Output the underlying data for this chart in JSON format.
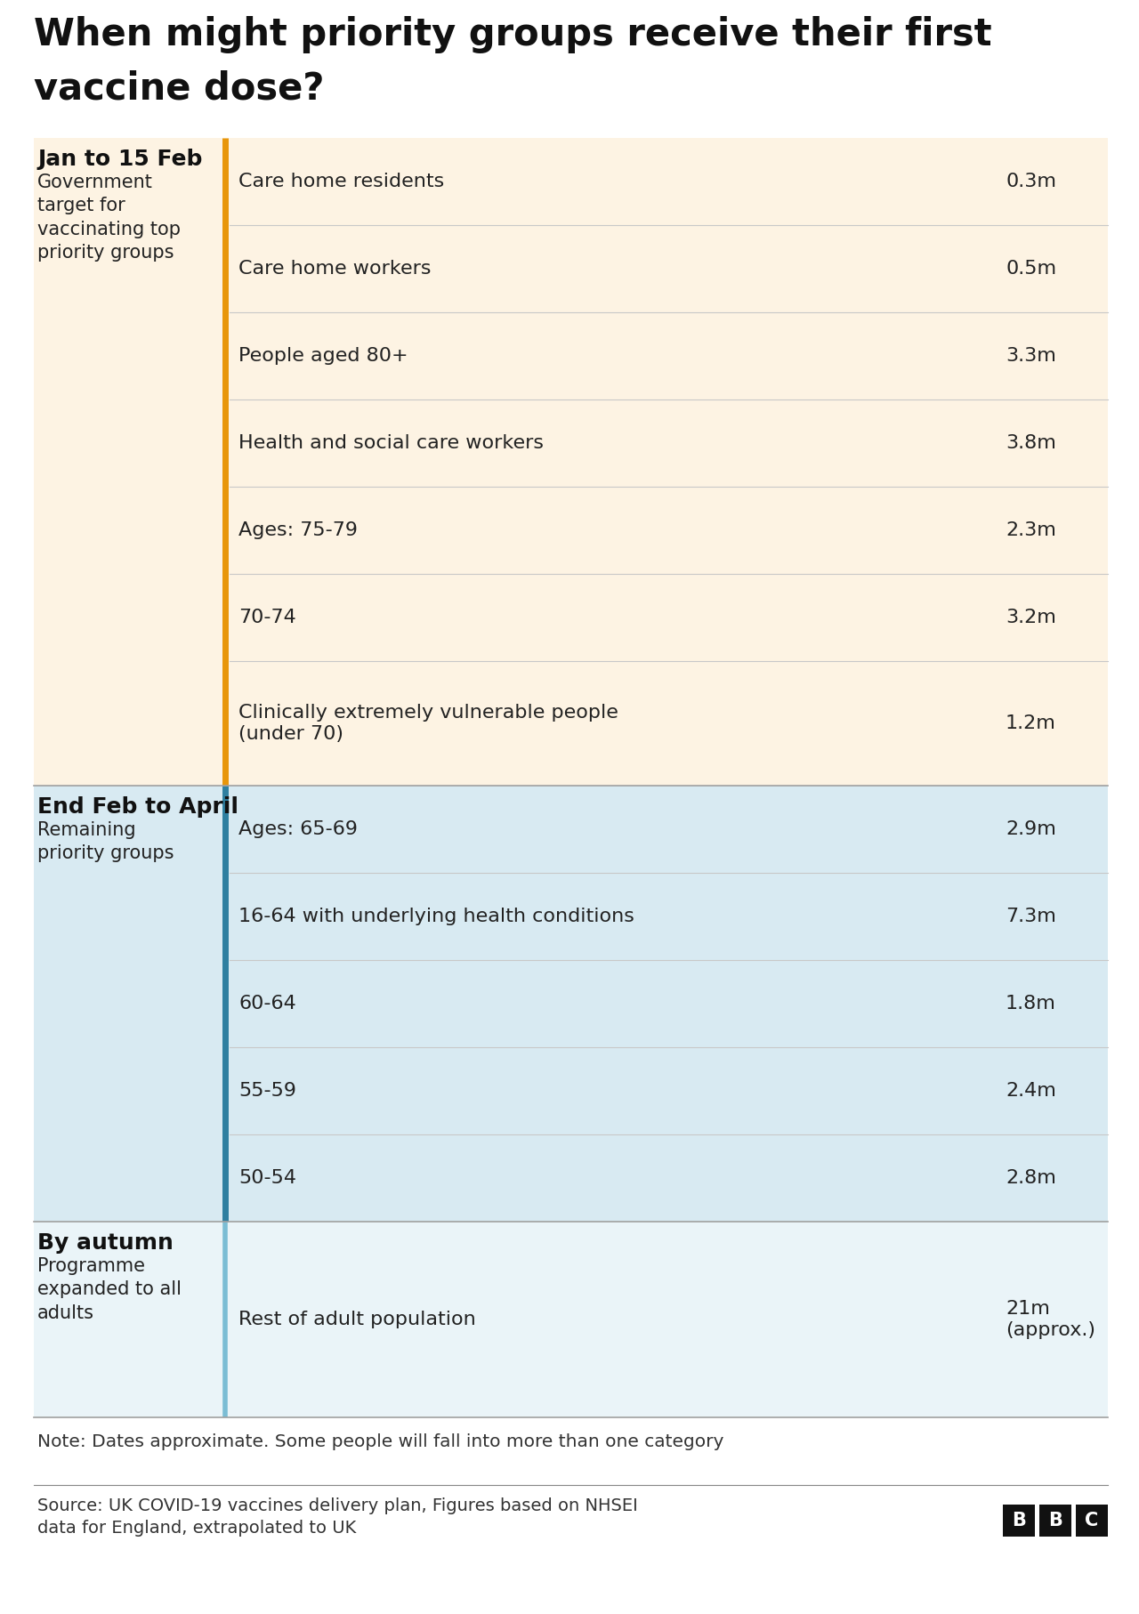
{
  "title_line1": "When might priority groups receive their first",
  "title_line2": "vaccine dose?",
  "title_fontsize": 30,
  "background_color": "#ffffff",
  "sections": [
    {
      "period": "Jan to 15 Feb",
      "subtitle": "Government\ntarget for\nvaccinating top\npriority groups",
      "bg_color": "#fdf3e3",
      "line_color": "#e8960a",
      "line_width": 5,
      "rows": [
        {
          "group": "Care home residents",
          "value": "0.3m"
        },
        {
          "group": "Care home workers",
          "value": "0.5m"
        },
        {
          "group": "People aged 80+",
          "value": "3.3m"
        },
        {
          "group": "Health and social care workers",
          "value": "3.8m"
        },
        {
          "group": "Ages: 75-79",
          "value": "2.3m"
        },
        {
          "group": "70-74",
          "value": "3.2m"
        },
        {
          "group": "Clinically extremely vulnerable people\n(under 70)",
          "value": "1.2m"
        }
      ]
    },
    {
      "period": "End Feb to April",
      "subtitle": "Remaining\npriority groups",
      "bg_color": "#d8eaf2",
      "line_color": "#2e7fa0",
      "line_width": 5,
      "rows": [
        {
          "group": "Ages: 65-69",
          "value": "2.9m"
        },
        {
          "group": "16-64 with underlying health conditions",
          "value": "7.3m"
        },
        {
          "group": "60-64",
          "value": "1.8m"
        },
        {
          "group": "55-59",
          "value": "2.4m"
        },
        {
          "group": "50-54",
          "value": "2.8m"
        }
      ]
    },
    {
      "period": "By autumn",
      "subtitle": "Programme\nexpanded to all\nadults",
      "bg_color": "#eaf4f8",
      "line_color": "#7bbdd4",
      "line_width": 4,
      "rows": [
        {
          "group": "Rest of adult population",
          "value": "21m\n(approx.)"
        }
      ]
    }
  ],
  "note": "Note: Dates approximate. Some people will fall into more than one category",
  "source": "Source: UK COVID-19 vaccines delivery plan, Figures based on NHSEI\ndata for England, extrapolated to UK",
  "note_fontsize": 14.5,
  "source_fontsize": 14,
  "period_bold_fontsize": 18,
  "subtitle_fontsize": 15,
  "group_fontsize": 16,
  "value_fontsize": 16
}
